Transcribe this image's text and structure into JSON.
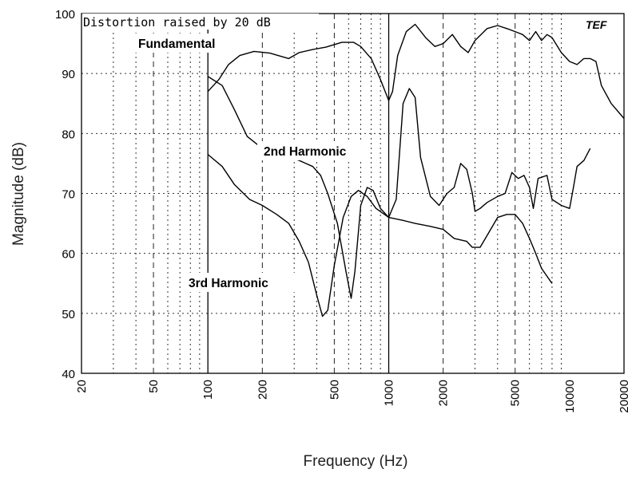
{
  "chart_data": {
    "type": "line",
    "xlabel": "Frequency (Hz)",
    "ylabel": "Magnitude (dB)",
    "x_scale": "log",
    "xlim": [
      20,
      20000
    ],
    "ylim": [
      40,
      100
    ],
    "x_ticks": [
      20,
      50,
      100,
      200,
      500,
      1000,
      2000,
      5000,
      10000,
      20000
    ],
    "x_tick_labels": [
      "20",
      "50",
      "100",
      "200",
      "500",
      "1000",
      "2000",
      "5000",
      "10000",
      "20000"
    ],
    "y_ticks": [
      40,
      50,
      60,
      70,
      80,
      90,
      100
    ],
    "y_tick_labels": [
      "40",
      "50",
      "60",
      "70",
      "80",
      "90",
      "100"
    ],
    "grid": true,
    "legend": "none",
    "annotations": {
      "note": "Distortion raised by  20 dB",
      "logo": "TEF"
    },
    "series": [
      {
        "name": "Fundamental",
        "points": [
          [
            100,
            87
          ],
          [
            115,
            89
          ],
          [
            130,
            91.5
          ],
          [
            150,
            93
          ],
          [
            180,
            93.7
          ],
          [
            220,
            93.4
          ],
          [
            280,
            92.5
          ],
          [
            320,
            93.5
          ],
          [
            380,
            94
          ],
          [
            450,
            94.4
          ],
          [
            550,
            95.2
          ],
          [
            640,
            95.2
          ],
          [
            700,
            94.5
          ],
          [
            800,
            92.5
          ],
          [
            900,
            89
          ],
          [
            1000,
            85.5
          ],
          [
            1050,
            87
          ],
          [
            1120,
            93
          ],
          [
            1250,
            97
          ],
          [
            1400,
            98.2
          ],
          [
            1600,
            96
          ],
          [
            1800,
            94.5
          ],
          [
            2000,
            95
          ],
          [
            2250,
            96.5
          ],
          [
            2500,
            94.5
          ],
          [
            2750,
            93.5
          ],
          [
            3000,
            95.5
          ],
          [
            3500,
            97.5
          ],
          [
            4000,
            98
          ],
          [
            4500,
            97.5
          ],
          [
            5000,
            97
          ],
          [
            5500,
            96.5
          ],
          [
            6000,
            95.5
          ],
          [
            6500,
            97
          ],
          [
            7000,
            95.5
          ],
          [
            7500,
            96.5
          ],
          [
            8000,
            96
          ],
          [
            9000,
            93.5
          ],
          [
            10000,
            92
          ],
          [
            11000,
            91.5
          ],
          [
            12000,
            92.5
          ],
          [
            13000,
            92.5
          ],
          [
            14000,
            92
          ],
          [
            15000,
            88
          ],
          [
            17000,
            85
          ],
          [
            20000,
            82.5
          ]
        ]
      },
      {
        "name": "2nd Harmonic",
        "points": [
          [
            100,
            89.5
          ],
          [
            120,
            88
          ],
          [
            140,
            84
          ],
          [
            165,
            79.5
          ],
          [
            200,
            77.5
          ],
          [
            250,
            76.5
          ],
          [
            320,
            75.5
          ],
          [
            380,
            74.5
          ],
          [
            420,
            73
          ],
          [
            460,
            70
          ],
          [
            520,
            65
          ],
          [
            580,
            57
          ],
          [
            620,
            52.5
          ],
          [
            650,
            57
          ],
          [
            700,
            68
          ],
          [
            760,
            71
          ],
          [
            820,
            70.5
          ],
          [
            900,
            67.5
          ],
          [
            1000,
            66
          ],
          [
            1100,
            69
          ],
          [
            1200,
            85
          ],
          [
            1300,
            87.5
          ],
          [
            1400,
            86
          ],
          [
            1500,
            76
          ],
          [
            1700,
            69.5
          ],
          [
            1900,
            68
          ],
          [
            2100,
            70
          ],
          [
            2300,
            71
          ],
          [
            2500,
            75
          ],
          [
            2700,
            74
          ],
          [
            2900,
            70
          ],
          [
            3000,
            67
          ],
          [
            3200,
            67.5
          ],
          [
            3500,
            68.5
          ],
          [
            4000,
            69.5
          ],
          [
            4400,
            70
          ],
          [
            4800,
            73.5
          ],
          [
            5200,
            72.5
          ],
          [
            5600,
            73
          ],
          [
            6000,
            71
          ],
          [
            6300,
            67.5
          ],
          [
            6700,
            72.5
          ],
          [
            7500,
            73
          ],
          [
            8000,
            69
          ],
          [
            9000,
            68
          ],
          [
            10000,
            67.5
          ],
          [
            10500,
            71
          ],
          [
            11000,
            74.5
          ],
          [
            12000,
            75.5
          ],
          [
            13000,
            77.5
          ]
        ]
      },
      {
        "name": "3rd Harmonic",
        "points": [
          [
            100,
            76.5
          ],
          [
            120,
            74.5
          ],
          [
            140,
            71.5
          ],
          [
            170,
            69
          ],
          [
            200,
            68
          ],
          [
            240,
            66.5
          ],
          [
            280,
            65
          ],
          [
            320,
            62
          ],
          [
            360,
            58.5
          ],
          [
            400,
            53
          ],
          [
            430,
            49.5
          ],
          [
            460,
            50.5
          ],
          [
            500,
            58
          ],
          [
            560,
            66
          ],
          [
            620,
            69.5
          ],
          [
            680,
            70.5
          ],
          [
            760,
            69.5
          ],
          [
            850,
            67.5
          ],
          [
            1000,
            66
          ],
          [
            1200,
            65.5
          ],
          [
            1400,
            65
          ],
          [
            1700,
            64.5
          ],
          [
            2000,
            64
          ],
          [
            2300,
            62.5
          ],
          [
            2700,
            62
          ],
          [
            2900,
            61
          ],
          [
            3200,
            61
          ],
          [
            3500,
            63
          ],
          [
            4000,
            66
          ],
          [
            4500,
            66.5
          ],
          [
            5000,
            66.5
          ],
          [
            5500,
            65
          ],
          [
            6000,
            62.5
          ],
          [
            6500,
            60
          ],
          [
            7000,
            57.5
          ],
          [
            8000,
            55
          ]
        ]
      }
    ],
    "labels": {
      "fundamental": "Fundamental",
      "second": "2nd Harmonic",
      "third": "3rd Harmonic"
    }
  }
}
